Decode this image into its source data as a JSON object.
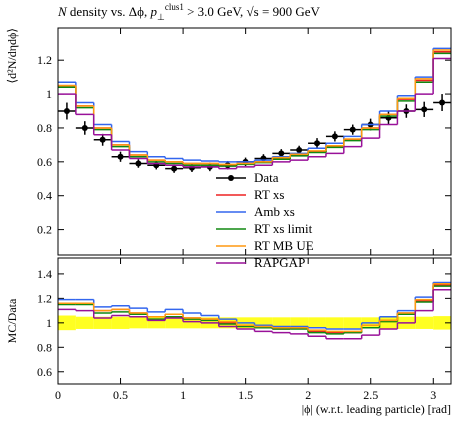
{
  "chart_data": [
    {
      "type": "histogram",
      "title_parts": [
        "N",
        " density vs. Δϕ, ",
        "p",
        "⊥",
        "clus1",
        " > 3.0 GeV, ",
        "√s",
        " = 900 GeV"
      ],
      "ylabel": "⟨d²N/dηdϕ⟩",
      "bins": [
        0,
        0.1428,
        0.2856,
        0.4284,
        0.5712,
        0.714,
        0.8568,
        0.9996,
        1.1424,
        1.2852,
        1.428,
        1.5708,
        1.7136,
        1.8564,
        1.9992,
        2.142,
        2.2848,
        2.4276,
        2.5704,
        2.7132,
        2.856,
        2.9988,
        3.1416
      ],
      "xlim": [
        0,
        3.1416
      ],
      "xticks": [
        0,
        0.5,
        1,
        1.5,
        2,
        2.5,
        3
      ],
      "ylim": [
        0.05,
        1.39
      ],
      "yticks": [
        0.2,
        0.4,
        0.6,
        0.8,
        1,
        1.2
      ],
      "series": [
        {
          "name": "Data",
          "color": "#000000",
          "style": "points",
          "values": [
            0.9,
            0.8,
            0.73,
            0.63,
            0.59,
            0.58,
            0.56,
            0.565,
            0.57,
            0.58,
            0.6,
            0.62,
            0.65,
            0.67,
            0.71,
            0.75,
            0.79,
            0.82,
            0.86,
            0.9,
            0.91,
            0.95
          ],
          "yerr": [
            0.05,
            0.04,
            0.035,
            0.03,
            0.025,
            0.025,
            0.025,
            0.025,
            0.025,
            0.025,
            0.025,
            0.025,
            0.025,
            0.025,
            0.03,
            0.03,
            0.03,
            0.035,
            0.04,
            0.04,
            0.045,
            0.05
          ]
        },
        {
          "name": "RT xs",
          "color": "#ee2222",
          "style": "step",
          "values": [
            1.05,
            0.93,
            0.8,
            0.7,
            0.64,
            0.61,
            0.6,
            0.59,
            0.59,
            0.58,
            0.59,
            0.6,
            0.62,
            0.64,
            0.66,
            0.69,
            0.73,
            0.8,
            0.88,
            0.97,
            1.08,
            1.25
          ]
        },
        {
          "name": "Amb xs",
          "color": "#3366ee",
          "style": "step",
          "values": [
            1.07,
            0.95,
            0.82,
            0.72,
            0.66,
            0.63,
            0.62,
            0.61,
            0.605,
            0.6,
            0.6,
            0.61,
            0.63,
            0.65,
            0.68,
            0.71,
            0.75,
            0.82,
            0.9,
            0.99,
            1.1,
            1.27
          ]
        },
        {
          "name": "RT xs limit",
          "color": "#118811",
          "style": "step",
          "values": [
            1.04,
            0.92,
            0.79,
            0.69,
            0.63,
            0.6,
            0.59,
            0.58,
            0.58,
            0.575,
            0.585,
            0.595,
            0.615,
            0.635,
            0.655,
            0.685,
            0.725,
            0.79,
            0.87,
            0.96,
            1.07,
            1.24
          ]
        },
        {
          "name": "RT MB UE",
          "color": "#ff9911",
          "style": "step",
          "values": [
            1.05,
            0.93,
            0.8,
            0.7,
            0.64,
            0.61,
            0.6,
            0.59,
            0.59,
            0.585,
            0.59,
            0.6,
            0.625,
            0.645,
            0.665,
            0.695,
            0.735,
            0.8,
            0.88,
            0.975,
            1.09,
            1.26
          ]
        },
        {
          "name": "RAPGAP",
          "color": "#991199",
          "style": "step",
          "values": [
            1.0,
            0.88,
            0.76,
            0.67,
            0.62,
            0.59,
            0.58,
            0.57,
            0.57,
            0.56,
            0.57,
            0.58,
            0.6,
            0.61,
            0.63,
            0.65,
            0.69,
            0.74,
            0.82,
            0.9,
            1.0,
            1.21
          ]
        }
      ]
    },
    {
      "type": "histogram",
      "ylabel": "MC/Data",
      "xlabel": "|ϕ| (w.r.t. leading particle) [rad]",
      "bins": [
        0,
        0.1428,
        0.2856,
        0.4284,
        0.5712,
        0.714,
        0.8568,
        0.9996,
        1.1424,
        1.2852,
        1.428,
        1.5708,
        1.7136,
        1.8564,
        1.9992,
        2.142,
        2.2848,
        2.4276,
        2.5704,
        2.7132,
        2.856,
        2.9988,
        3.1416
      ],
      "xlim": [
        0,
        3.1416
      ],
      "xticks": [
        0,
        0.5,
        1,
        1.5,
        2,
        2.5,
        3
      ],
      "ylim": [
        0.5,
        1.53
      ],
      "yticks": [
        0.6,
        0.8,
        1,
        1.2,
        1.4
      ],
      "band_color": "#ffff22",
      "band": [
        0.06,
        0.05,
        0.05,
        0.05,
        0.045,
        0.045,
        0.045,
        0.045,
        0.045,
        0.045,
        0.045,
        0.045,
        0.045,
        0.045,
        0.045,
        0.045,
        0.045,
        0.045,
        0.05,
        0.05,
        0.05,
        0.055
      ],
      "series": [
        {
          "name": "RT xs",
          "color": "#ee2222",
          "values": [
            1.16,
            1.16,
            1.1,
            1.11,
            1.08,
            1.05,
            1.07,
            1.04,
            1.03,
            1.0,
            0.98,
            0.97,
            0.95,
            0.96,
            0.93,
            0.92,
            0.92,
            0.98,
            1.02,
            1.08,
            1.18,
            1.31
          ]
        },
        {
          "name": "Amb xs",
          "color": "#3366ee",
          "values": [
            1.19,
            1.19,
            1.13,
            1.14,
            1.12,
            1.09,
            1.11,
            1.08,
            1.06,
            1.03,
            1.0,
            0.98,
            0.97,
            0.97,
            0.96,
            0.95,
            0.95,
            1.0,
            1.05,
            1.1,
            1.21,
            1.33
          ]
        },
        {
          "name": "RT xs limit",
          "color": "#118811",
          "values": [
            1.15,
            1.15,
            1.08,
            1.09,
            1.07,
            1.03,
            1.05,
            1.03,
            1.02,
            0.99,
            0.97,
            0.96,
            0.95,
            0.95,
            0.92,
            0.91,
            0.92,
            0.96,
            1.01,
            1.07,
            1.17,
            1.3
          ]
        },
        {
          "name": "RT MB UE",
          "color": "#ff9911",
          "values": [
            1.16,
            1.16,
            1.1,
            1.11,
            1.08,
            1.05,
            1.07,
            1.04,
            1.03,
            1.01,
            0.98,
            0.97,
            0.96,
            0.96,
            0.94,
            0.93,
            0.93,
            0.98,
            1.02,
            1.08,
            1.19,
            1.32
          ]
        },
        {
          "name": "RAPGAP",
          "color": "#991199",
          "values": [
            1.11,
            1.1,
            1.04,
            1.06,
            1.05,
            1.02,
            1.04,
            1.01,
            1.0,
            0.97,
            0.95,
            0.93,
            0.92,
            0.91,
            0.89,
            0.87,
            0.87,
            0.9,
            0.95,
            1.0,
            1.1,
            1.27
          ]
        }
      ]
    }
  ]
}
